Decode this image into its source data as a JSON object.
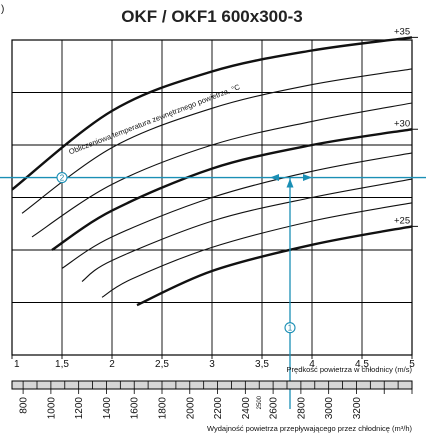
{
  "page": {
    "corner_mark": ")"
  },
  "chart_data": {
    "type": "line",
    "title": "OKF / OKF1 600x300-3",
    "curve_family_label": "Obliczeniowa temperatura zewnętrznego powietrza, °C",
    "x_axis": {
      "label": "Prędkość powietrza w chłodnicy (m/s)",
      "range": [
        1,
        5
      ],
      "ticks": [
        "1",
        "1,5",
        "2",
        "2,5",
        "3",
        "3,5",
        "4",
        "4,5",
        "5"
      ],
      "tick_values": [
        1,
        1.5,
        2,
        2.5,
        3,
        3.5,
        4,
        4.5,
        5
      ]
    },
    "y_axis": {
      "label": "",
      "range": [
        0,
        6
      ],
      "ticks": []
    },
    "flow_axis": {
      "label": "Wydajność powietrza przepływającego przez chłodnicę (m³/h)",
      "ticks": [
        "800",
        "1000",
        "1200",
        "1400",
        "1600",
        "1800",
        "2000",
        "2200",
        "2400",
        "2600",
        "2800",
        "3000",
        "3200"
      ],
      "tick_values": [
        800,
        1000,
        1200,
        1400,
        1600,
        1800,
        2000,
        2200,
        2400,
        2600,
        2800,
        3000,
        3200
      ],
      "marker": "2500",
      "marker_value": 2500
    },
    "grid": true,
    "series": [
      {
        "name": "+35",
        "labeled": true,
        "bold": true,
        "x": [
          1,
          2,
          3,
          4,
          5
        ],
        "y": [
          3.15,
          4.65,
          5.4,
          5.8,
          6.05
        ]
      },
      {
        "name": "",
        "labeled": false,
        "bold": false,
        "x": [
          1.1,
          2,
          3,
          4,
          5
        ],
        "y": [
          2.7,
          3.95,
          4.7,
          5.15,
          5.45
        ]
      },
      {
        "name": "",
        "labeled": false,
        "bold": false,
        "x": [
          1.2,
          2,
          3,
          4,
          5
        ],
        "y": [
          2.25,
          3.25,
          4.0,
          4.45,
          4.8
        ]
      },
      {
        "name": "+30",
        "labeled": true,
        "bold": true,
        "x": [
          1.4,
          2,
          3,
          4,
          5
        ],
        "y": [
          2.0,
          2.75,
          3.55,
          4.0,
          4.3
        ]
      },
      {
        "name": "",
        "labeled": false,
        "bold": false,
        "x": [
          1.5,
          2,
          3,
          4,
          5
        ],
        "y": [
          1.65,
          2.25,
          3.0,
          3.5,
          3.85
        ]
      },
      {
        "name": "",
        "labeled": false,
        "bold": false,
        "x": [
          1.7,
          2,
          3,
          4,
          5
        ],
        "y": [
          1.4,
          1.8,
          2.55,
          3.0,
          3.35
        ]
      },
      {
        "name": "",
        "labeled": false,
        "bold": false,
        "x": [
          1.9,
          2.2,
          3,
          4,
          5
        ],
        "y": [
          1.1,
          1.45,
          2.05,
          2.55,
          2.9
        ]
      },
      {
        "name": "+25",
        "labeled": true,
        "bold": true,
        "x": [
          2.25,
          3,
          4,
          5
        ],
        "y": [
          0.95,
          1.6,
          2.1,
          2.45
        ]
      }
    ],
    "annotations": [
      {
        "label": "1",
        "x": 3.78,
        "y": 0.52
      },
      {
        "label": "2",
        "x": 1.5,
        "y": 3.38
      }
    ],
    "reading": {
      "x": 3.78,
      "y": 3.38
    }
  }
}
